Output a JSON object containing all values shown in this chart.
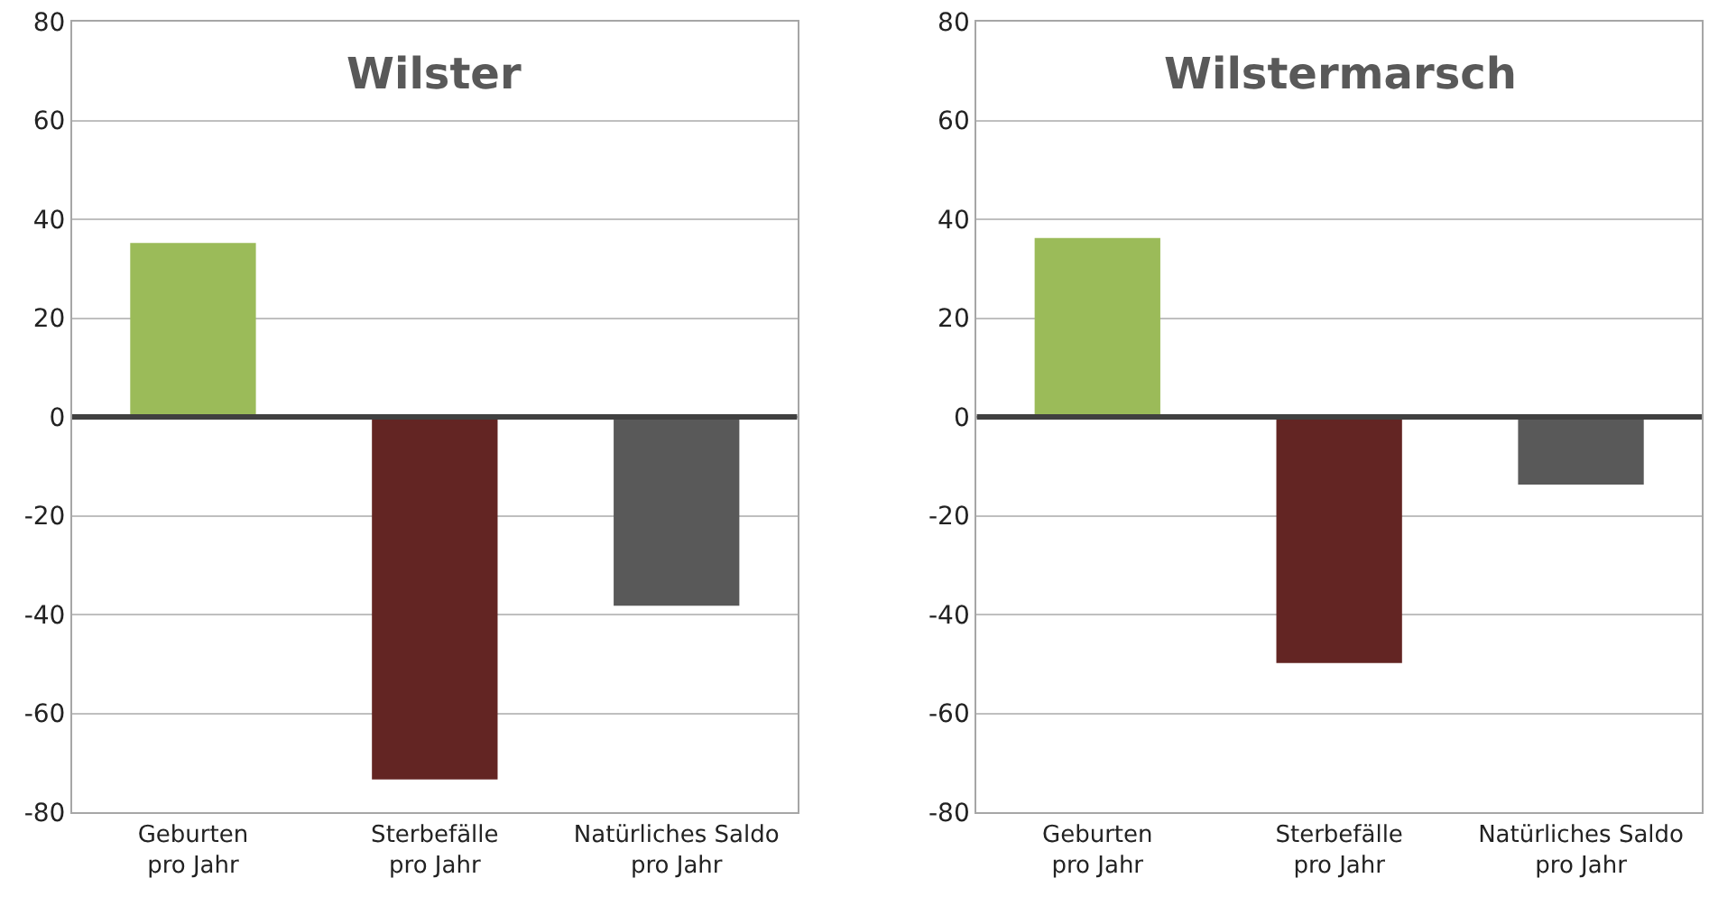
{
  "chart_data": [
    {
      "type": "bar",
      "title": "Wilster",
      "categories": [
        "Geburten\npro Jahr",
        "Sterbefälle\npro Jahr",
        "Natürliches Saldo\npro Jahr"
      ],
      "values": [
        35.2,
        -73.4,
        -38.2
      ],
      "colors": [
        "#9bbb59",
        "#632523",
        "#595959"
      ],
      "ylim": [
        -80,
        80
      ],
      "yticks": [
        -80,
        -60,
        -40,
        -20,
        0,
        20,
        40,
        60,
        80
      ],
      "grid": "y",
      "legend": false
    },
    {
      "type": "bar",
      "title": "Wilstermarsch",
      "categories": [
        "Geburten\npro Jahr",
        "Sterbefälle\npro Jahr",
        "Natürliches Saldo\npro Jahr"
      ],
      "values": [
        36.2,
        -49.8,
        -13.7
      ],
      "colors": [
        "#9bbb59",
        "#632523",
        "#595959"
      ],
      "ylim": [
        -80,
        80
      ],
      "yticks": [
        -80,
        -60,
        -40,
        -20,
        0,
        20,
        40,
        60,
        80
      ],
      "grid": "y",
      "legend": false
    }
  ]
}
